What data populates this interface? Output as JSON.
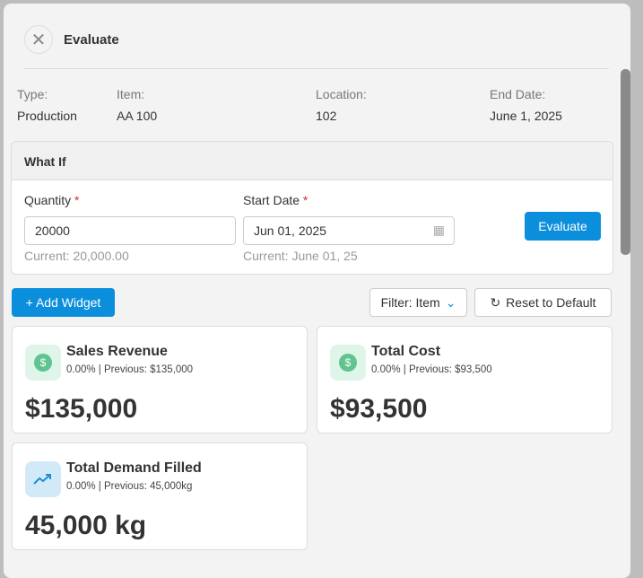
{
  "header": {
    "title": "Evaluate"
  },
  "info": [
    {
      "label": "Type:",
      "value": "Production"
    },
    {
      "label": "Item:",
      "value": "AA 100"
    },
    {
      "label": "Location:",
      "value": "102"
    },
    {
      "label": "End Date:",
      "value": "June 1, 2025"
    }
  ],
  "what_if": {
    "title": "What If",
    "quantity_label": "Quantity",
    "quantity_value": "20000",
    "quantity_current": "Current: 20,000.00",
    "start_label": "Start Date",
    "start_value": "Jun 01, 2025",
    "start_current": "Current: June 01, 25",
    "required": "*",
    "evaluate": "Evaluate"
  },
  "toolbar": {
    "add_widget": "+ Add Widget",
    "filter": "Filter: Item",
    "reset": "Reset to Default"
  },
  "widgets": [
    {
      "title": "Sales Revenue",
      "sub": "0.00% | Previous: $135,000",
      "value": "$135,000"
    },
    {
      "title": "Total Cost",
      "sub": "0.00% | Previous: $93,500",
      "value": "$93,500"
    },
    {
      "title": "Total Demand Filled",
      "sub": "0.00% | Previous: 45,000kg",
      "value": "45,000 kg"
    }
  ]
}
